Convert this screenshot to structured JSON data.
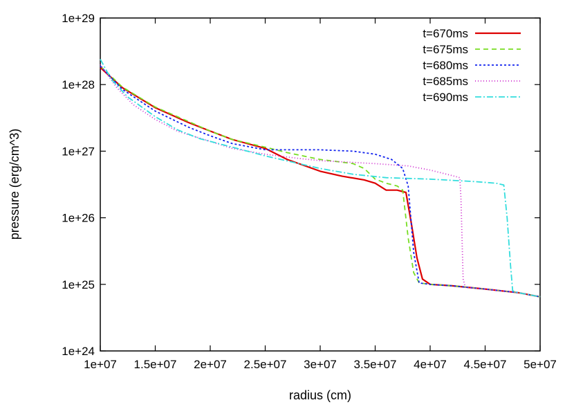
{
  "chart_data": {
    "type": "line",
    "title": "",
    "xlabel": "radius (cm)",
    "ylabel": "pressure (erg/cm^3)",
    "x_scale": "linear",
    "y_scale": "log",
    "xlim": [
      10000000,
      50000000
    ],
    "ylim": [
      1e+24,
      1e+29
    ],
    "x_ticks": [
      {
        "value": 10000000,
        "label": "1e+07"
      },
      {
        "value": 15000000,
        "label": "1.5e+07"
      },
      {
        "value": 20000000,
        "label": "2e+07"
      },
      {
        "value": 25000000,
        "label": "2.5e+07"
      },
      {
        "value": 30000000,
        "label": "3e+07"
      },
      {
        "value": 35000000,
        "label": "3.5e+07"
      },
      {
        "value": 40000000,
        "label": "4e+07"
      },
      {
        "value": 45000000,
        "label": "4.5e+07"
      },
      {
        "value": 50000000,
        "label": "5e+07"
      }
    ],
    "y_ticks": [
      {
        "value": 1e+24,
        "label": "1e+24"
      },
      {
        "value": 1e+25,
        "label": "1e+25"
      },
      {
        "value": 1e+26,
        "label": "1e+26"
      },
      {
        "value": 1e+27,
        "label": "1e+27"
      },
      {
        "value": 1e+28,
        "label": "1e+28"
      },
      {
        "value": 1e+29,
        "label": "1e+29"
      }
    ],
    "grid": false,
    "legend_position": "top-right",
    "series": [
      {
        "name": "t=670ms",
        "color": "#dd0000",
        "dash": "solid",
        "points": [
          [
            10000000,
            1.8e+28
          ],
          [
            12000000,
            9e+27
          ],
          [
            15000000,
            4.5e+27
          ],
          [
            18000000,
            2.7e+27
          ],
          [
            20000000,
            2e+27
          ],
          [
            22000000,
            1.5e+27
          ],
          [
            25000000,
            1.1e+27
          ],
          [
            27000000,
            7.5e+26
          ],
          [
            30000000,
            5e+26
          ],
          [
            32000000,
            4.2e+26
          ],
          [
            34000000,
            3.7e+26
          ],
          [
            35000000,
            3.3e+26
          ],
          [
            36000000,
            2.6e+26
          ],
          [
            37000000,
            2.6e+26
          ],
          [
            37800000,
            2.4e+26
          ],
          [
            38300000,
            8e+25
          ],
          [
            38800000,
            2.5e+25
          ],
          [
            39300000,
            1.2e+25
          ],
          [
            40000000,
            1e+25
          ],
          [
            42000000,
            9.5e+24
          ],
          [
            45000000,
            8.5e+24
          ],
          [
            48000000,
            7.5e+24
          ],
          [
            50000000,
            6.5e+24
          ]
        ]
      },
      {
        "name": "t=675ms",
        "color": "#77dd22",
        "dash": "7,5",
        "points": [
          [
            10000000,
            1.9e+28
          ],
          [
            12000000,
            9.2e+27
          ],
          [
            15000000,
            4.6e+27
          ],
          [
            18000000,
            2.8e+27
          ],
          [
            20000000,
            2e+27
          ],
          [
            22000000,
            1.5e+27
          ],
          [
            25000000,
            1.15e+27
          ],
          [
            27000000,
            9.5e+26
          ],
          [
            30000000,
            7.5e+26
          ],
          [
            33000000,
            6.5e+26
          ],
          [
            34000000,
            5.5e+26
          ],
          [
            35000000,
            3.8e+26
          ],
          [
            36000000,
            3.3e+26
          ],
          [
            37000000,
            3e+26
          ],
          [
            37500000,
            2.6e+26
          ],
          [
            38000000,
            5e+25
          ],
          [
            38500000,
            1.5e+25
          ],
          [
            39000000,
            1.05e+25
          ],
          [
            40000000,
            1e+25
          ],
          [
            42000000,
            9.5e+24
          ],
          [
            45000000,
            8.5e+24
          ],
          [
            48000000,
            7.5e+24
          ],
          [
            50000000,
            6.5e+24
          ]
        ]
      },
      {
        "name": "t=680ms",
        "color": "#1122ee",
        "dash": "3,3",
        "points": [
          [
            10000000,
            1.9e+28
          ],
          [
            12000000,
            8.5e+27
          ],
          [
            15000000,
            4e+27
          ],
          [
            18000000,
            2.3e+27
          ],
          [
            20000000,
            1.7e+27
          ],
          [
            22000000,
            1.3e+27
          ],
          [
            25000000,
            1.05e+27
          ],
          [
            28000000,
            1.05e+27
          ],
          [
            30000000,
            1.05e+27
          ],
          [
            33000000,
            1e+27
          ],
          [
            35000000,
            9e+26
          ],
          [
            36500000,
            7.5e+26
          ],
          [
            37500000,
            5.5e+26
          ],
          [
            38000000,
            3e+26
          ],
          [
            38500000,
            3e+25
          ],
          [
            39000000,
            1.05e+25
          ],
          [
            40000000,
            1e+25
          ],
          [
            42000000,
            9.5e+24
          ],
          [
            45000000,
            8.5e+24
          ],
          [
            48000000,
            7.5e+24
          ],
          [
            50000000,
            6.5e+24
          ]
        ]
      },
      {
        "name": "t=685ms",
        "color": "#cc22cc",
        "dash": "1,3",
        "points": [
          [
            10000000,
            2e+28
          ],
          [
            11500000,
            9e+27
          ],
          [
            13000000,
            5e+27
          ],
          [
            15000000,
            3e+27
          ],
          [
            17000000,
            2e+27
          ],
          [
            20000000,
            1.4e+27
          ],
          [
            22000000,
            1.1e+27
          ],
          [
            25000000,
            9e+26
          ],
          [
            28000000,
            7.8e+26
          ],
          [
            30000000,
            7.2e+26
          ],
          [
            35000000,
            6.5e+26
          ],
          [
            38000000,
            6e+26
          ],
          [
            40000000,
            5.2e+26
          ],
          [
            42000000,
            4.3e+26
          ],
          [
            42700000,
            4e+26
          ],
          [
            42800000,
            2e+26
          ],
          [
            43000000,
            1.2e+25
          ],
          [
            43200000,
            9e+24
          ],
          [
            45000000,
            8.5e+24
          ],
          [
            48000000,
            7.5e+24
          ],
          [
            50000000,
            6.5e+24
          ]
        ]
      },
      {
        "name": "t=690ms",
        "color": "#33dddd",
        "dash": "9,3,2,3",
        "points": [
          [
            10000000,
            2.4e+28
          ],
          [
            11000000,
            1.2e+28
          ],
          [
            12500000,
            6.5e+27
          ],
          [
            15000000,
            3.3e+27
          ],
          [
            17000000,
            2.1e+27
          ],
          [
            19000000,
            1.55e+27
          ],
          [
            22000000,
            1.15e+27
          ],
          [
            25000000,
            8.5e+26
          ],
          [
            30000000,
            5.5e+26
          ],
          [
            33000000,
            4.5e+26
          ],
          [
            36000000,
            4e+26
          ],
          [
            40000000,
            3.8e+26
          ],
          [
            44000000,
            3.5e+26
          ],
          [
            46000000,
            3.3e+26
          ],
          [
            46700000,
            3.1e+26
          ],
          [
            47000000,
            1e+26
          ],
          [
            47300000,
            2e+25
          ],
          [
            47500000,
            8e+24
          ],
          [
            48000000,
            7.5e+24
          ],
          [
            50000000,
            6.5e+24
          ]
        ]
      }
    ]
  }
}
